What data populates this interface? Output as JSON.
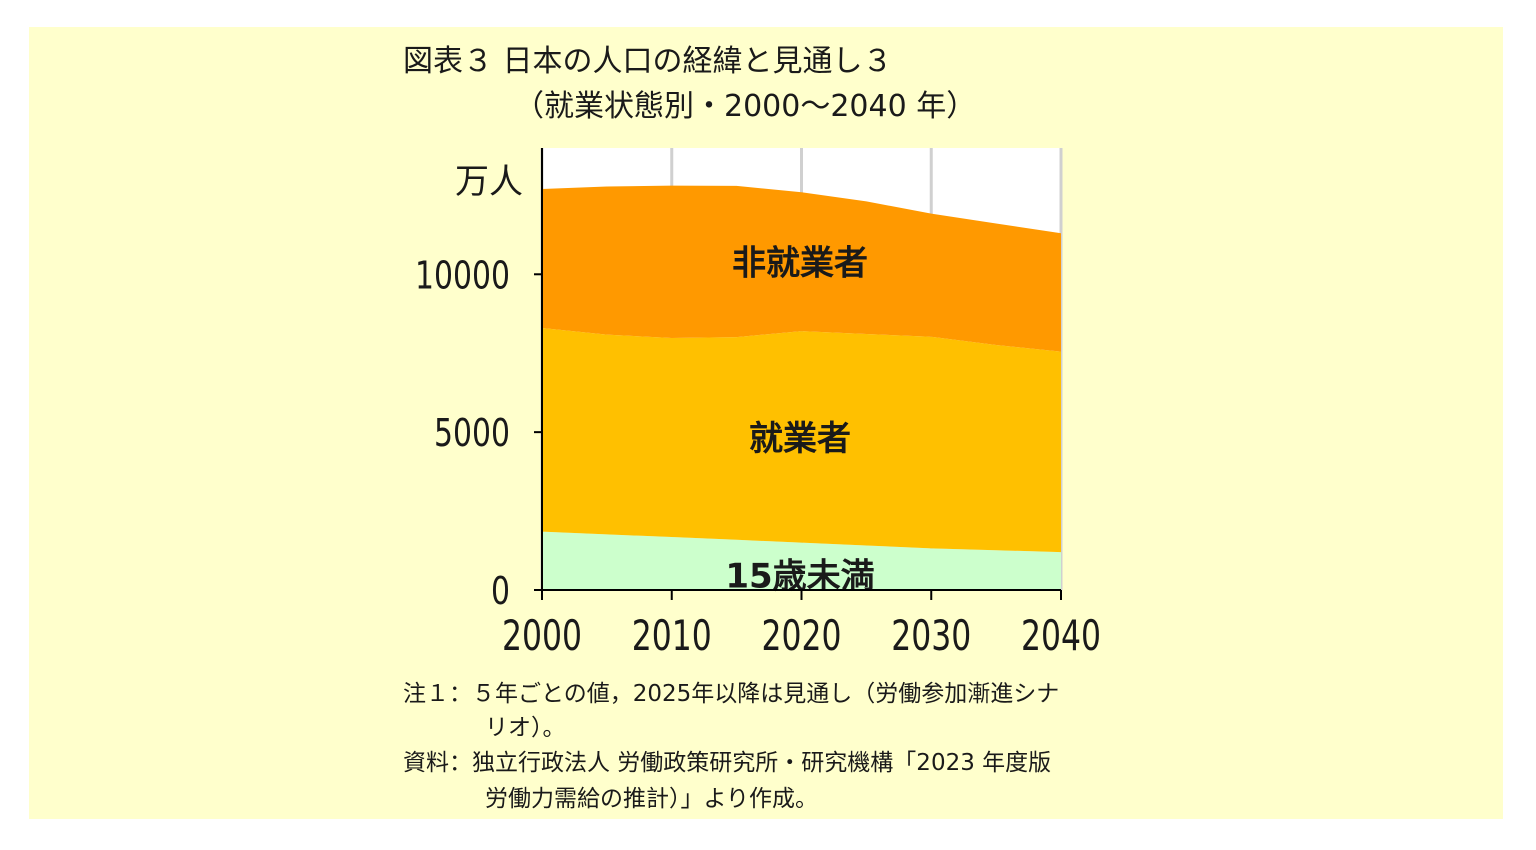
{
  "colors": {
    "background": "#ffffcc",
    "under15": "#ccffcc",
    "employed": "#ffc000",
    "nonEmployed": "#ff9900",
    "grid": "#d0d0d0",
    "axis": "#000000"
  },
  "chart_data": {
    "type": "area",
    "stacked": true,
    "title": "図表３ 日本の人口の経緯と見通し３",
    "subtitle": "（就業状態別・2000～2040 年）",
    "ylabel": "万人",
    "xlabel": "",
    "x": [
      2000,
      2005,
      2010,
      2015,
      2020,
      2025,
      2030,
      2035,
      2040
    ],
    "xticks": [
      "2000",
      "2010",
      "2020",
      "2030",
      "2040"
    ],
    "yticks": [
      "0",
      "5000",
      "10000"
    ],
    "ylim": [
      0,
      14000
    ],
    "xlim": [
      2000,
      2040
    ],
    "grid": "vertical",
    "series": [
      {
        "name": "15歳未満",
        "values": [
          1850,
          1760,
          1680,
          1590,
          1500,
          1410,
          1320,
          1260,
          1200
        ]
      },
      {
        "name": "就業者",
        "values": [
          6450,
          6330,
          6300,
          6420,
          6700,
          6700,
          6700,
          6500,
          6350
        ]
      },
      {
        "name": "非就業者",
        "values": [
          4400,
          4690,
          4830,
          4790,
          4400,
          4200,
          3900,
          3850,
          3750
        ]
      }
    ]
  },
  "notes": {
    "note1_line1": "注１：５年ごとの値，2025年以降は見通し（労働参加漸進シナ",
    "note1_line2": "リオ）。",
    "source_line1": "資料：独立行政法人 労働政策研究所・研究機構「2023 年度版",
    "source_line2": "労働力需給の推計）」より作成。"
  }
}
